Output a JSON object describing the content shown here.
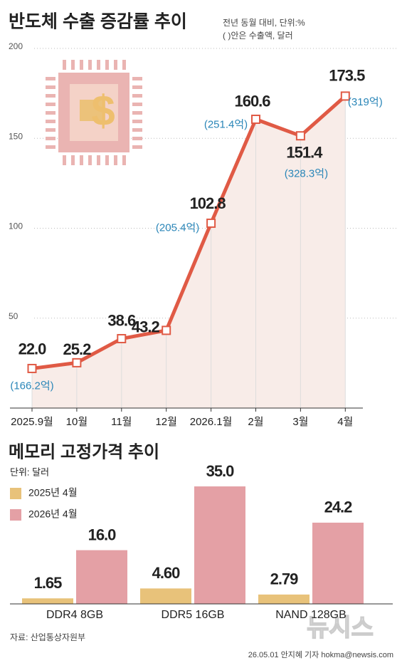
{
  "chart_data": [
    {
      "type": "line",
      "title": "반도체 수출 증감률 추이",
      "subtitle": "전년 동월 대비, 단위:%",
      "note": "( )안은 수출액, 달러",
      "categories": [
        "2025.9월",
        "10월",
        "11월",
        "12월",
        "2026.1월",
        "2월",
        "3월",
        "4월"
      ],
      "values": [
        22.0,
        25.2,
        38.6,
        43.2,
        102.8,
        160.6,
        151.4,
        173.5
      ],
      "value_labels": [
        "22.0",
        "25.2",
        "38.6",
        "43.2",
        "102.8",
        "160.6",
        "151.4",
        "173.5"
      ],
      "export_labels": [
        "(166.2억)",
        null,
        null,
        null,
        "(205.4억)",
        "(251.4억)",
        "(328.3억)",
        "(319억)"
      ],
      "color": "#e05a45",
      "ylim": [
        0,
        200
      ],
      "yticks": [
        50,
        100,
        150,
        200
      ],
      "grid": true
    },
    {
      "type": "bar",
      "title": "메모리 고정가격 추이",
      "unit": "단위: 달러",
      "categories": [
        "DDR4 8GB",
        "DDR5 16GB",
        "NAND 128GB"
      ],
      "series": [
        {
          "name": "2025년 4월",
          "color": "#e8c27a",
          "values": [
            1.65,
            4.6,
            2.79
          ],
          "value_labels": [
            "1.65",
            "4.60",
            "2.79"
          ]
        },
        {
          "name": "2026년 4월",
          "color": "#e4a0a5",
          "values": [
            16.0,
            35.0,
            24.2
          ],
          "value_labels": [
            "16.0",
            "35.0",
            "24.2"
          ]
        }
      ],
      "ylim": [
        0,
        35
      ]
    }
  ],
  "source": "자료: 산업통상자원부",
  "credit": "26.05.01 안지혜 기자 hokma@newsis.com",
  "logo": "뉴시스"
}
